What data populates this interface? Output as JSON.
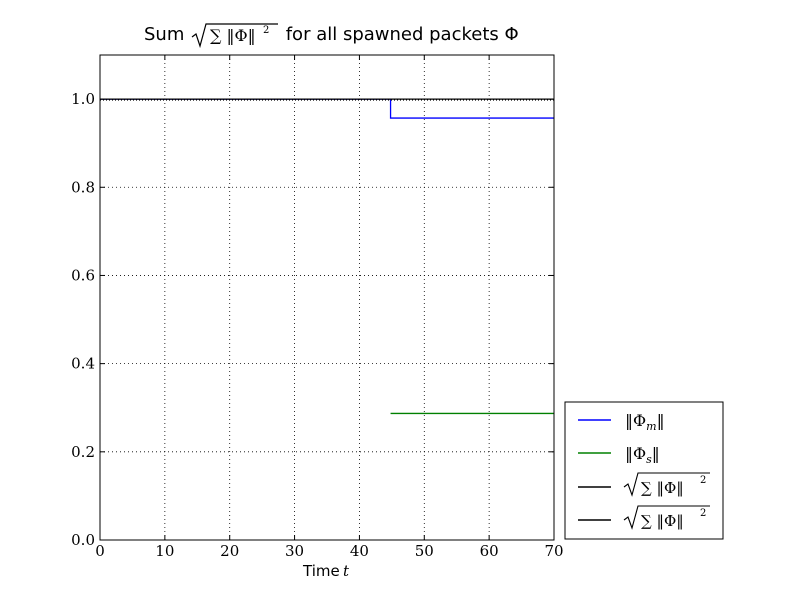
{
  "chart_data": {
    "type": "line",
    "title": {
      "prefix": "Sum ",
      "sum_expr": "∑ ‖Φ‖",
      "sum_sup": "2",
      "suffix": " for all spawned packets Φ"
    },
    "xlabel": {
      "text": "Time ",
      "var": "t"
    },
    "ylabel": "",
    "xlim": [
      0,
      70
    ],
    "ylim": [
      0.0,
      1.1
    ],
    "x_ticks": [
      "0",
      "10",
      "20",
      "30",
      "40",
      "50",
      "60",
      "70"
    ],
    "y_ticks": [
      "0.0",
      "0.2",
      "0.4",
      "0.6",
      "0.8",
      "1.0"
    ],
    "grid": true,
    "legend_placement": "outside-lower-right",
    "series": [
      {
        "legend": {
          "pre": "‖Φ",
          "sub": "m",
          "post": "‖",
          "root": false
        },
        "color": "#0000ff",
        "style": "solid",
        "x": [
          0,
          44.8,
          44.8,
          70
        ],
        "y": [
          1.0,
          1.0,
          0.957,
          0.957
        ]
      },
      {
        "legend": {
          "pre": "‖Φ",
          "sub": "s",
          "post": "‖",
          "root": false
        },
        "color": "#008000",
        "style": "solid",
        "x": [
          44.8,
          70
        ],
        "y": [
          0.287,
          0.287
        ]
      },
      {
        "legend": {
          "pre": "∑ ‖Φ‖",
          "sup": "2",
          "root": true
        },
        "color": "#000000",
        "style": "solid",
        "x": [
          0,
          70
        ],
        "y": [
          1.0,
          1.0
        ]
      },
      {
        "legend": {
          "pre": "∑ ‖Φ‖",
          "sup": "2",
          "root": true
        },
        "color": "#000000",
        "style": "dotted",
        "x": [
          0,
          70
        ],
        "y": [
          0.998,
          0.998
        ]
      }
    ]
  }
}
